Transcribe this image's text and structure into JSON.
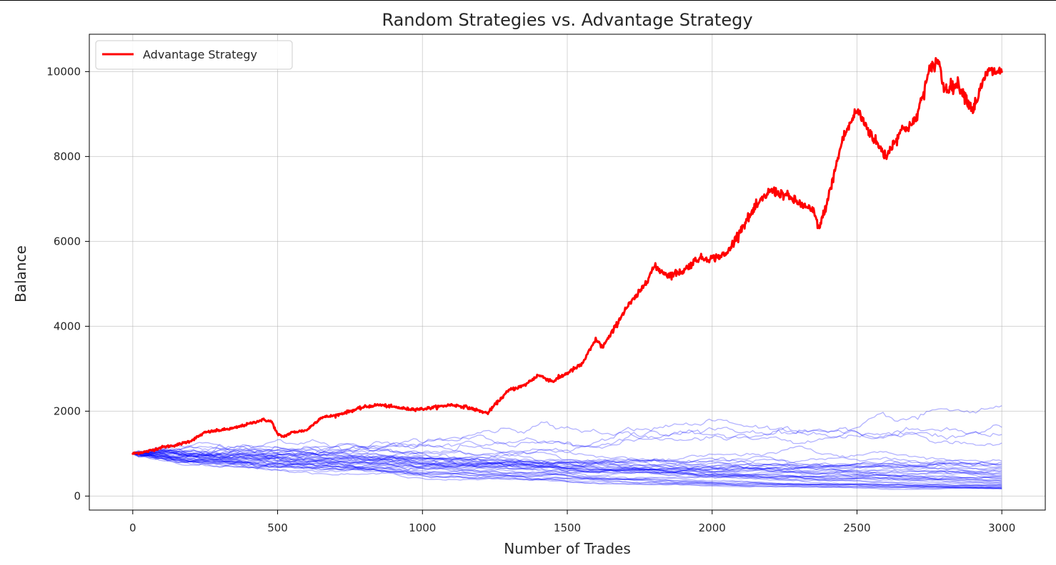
{
  "chart_data": {
    "type": "line",
    "title": "Random Strategies vs. Advantage Strategy",
    "xlabel": "Number of Trades",
    "ylabel": "Balance",
    "xlim": [
      -150,
      3150
    ],
    "ylim": [
      -330,
      10880
    ],
    "xticks": [
      0,
      500,
      1000,
      1500,
      2000,
      2500,
      3000
    ],
    "yticks": [
      0,
      2000,
      4000,
      6000,
      8000,
      10000
    ],
    "grid": true,
    "legend": {
      "placement": "top-left",
      "entries": [
        "Advantage Strategy"
      ]
    },
    "colors": {
      "advantage": "#ff0000",
      "random": "#0000ff"
    },
    "advantage_series": {
      "name": "Advantage Strategy",
      "x": [
        0,
        50,
        100,
        150,
        200,
        250,
        300,
        350,
        400,
        450,
        480,
        500,
        520,
        550,
        600,
        650,
        700,
        750,
        800,
        850,
        900,
        950,
        1000,
        1050,
        1100,
        1150,
        1200,
        1225,
        1250,
        1300,
        1350,
        1400,
        1450,
        1500,
        1550,
        1600,
        1620,
        1650,
        1700,
        1750,
        1800,
        1850,
        1900,
        1950,
        2000,
        2050,
        2100,
        2150,
        2200,
        2250,
        2300,
        2350,
        2370,
        2400,
        2450,
        2500,
        2550,
        2600,
        2650,
        2700,
        2750,
        2780,
        2800,
        2850,
        2900,
        2950,
        3000
      ],
      "y": [
        1000,
        1050,
        1150,
        1200,
        1300,
        1500,
        1550,
        1600,
        1700,
        1800,
        1750,
        1450,
        1400,
        1500,
        1550,
        1850,
        1900,
        2000,
        2100,
        2150,
        2100,
        2050,
        2050,
        2100,
        2150,
        2100,
        2000,
        1950,
        2150,
        2500,
        2600,
        2850,
        2700,
        2900,
        3100,
        3700,
        3500,
        3800,
        4400,
        4800,
        5400,
        5200,
        5300,
        5600,
        5600,
        5700,
        6300,
        6800,
        7200,
        7100,
        6900,
        6700,
        6300,
        7000,
        8400,
        9100,
        8500,
        8000,
        8600,
        8800,
        10000,
        10300,
        9600,
        9700,
        9100,
        10000,
        10000
      ]
    },
    "random_series_count": 40,
    "random_series_start": 1000,
    "random_series_end_range": [
      170,
      2130
    ]
  }
}
